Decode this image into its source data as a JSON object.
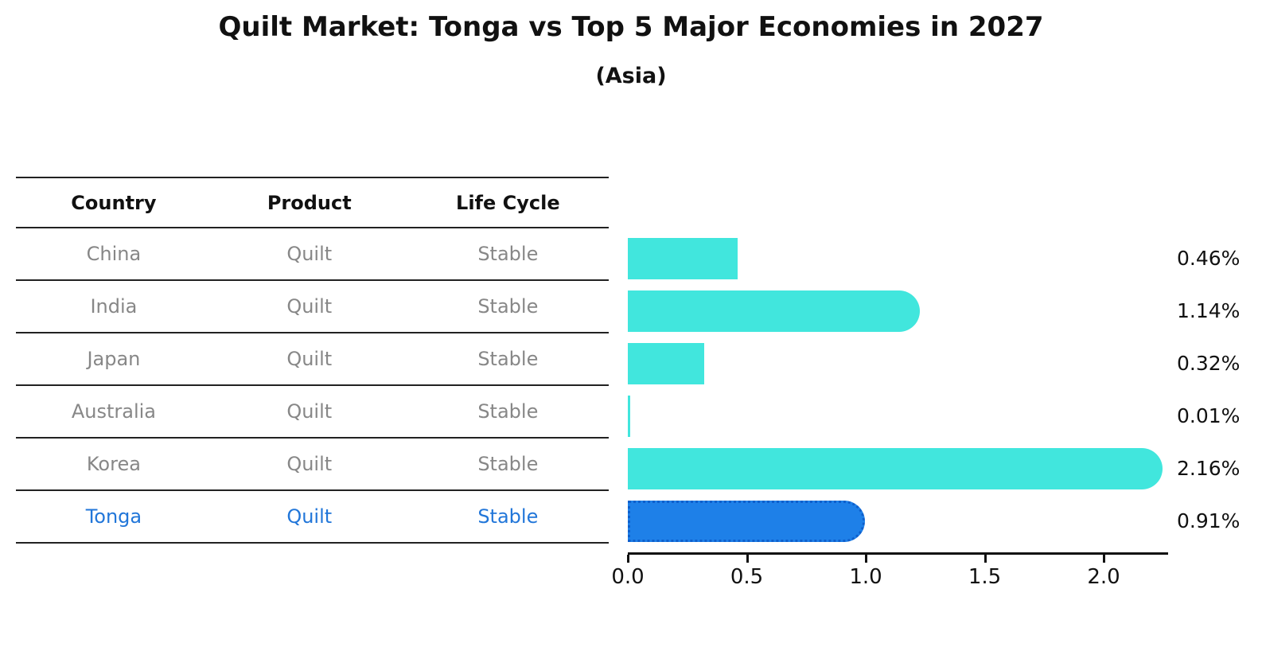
{
  "title": "Quilt Market: Tonga vs Top 5 Major Economies in 2027",
  "subtitle": "(Asia)",
  "table": {
    "headers": [
      "Country",
      "Product",
      "Life Cycle"
    ],
    "rows": [
      {
        "country": "China",
        "product": "Quilt",
        "life_cycle": "Stable"
      },
      {
        "country": "India",
        "product": "Quilt",
        "life_cycle": "Stable"
      },
      {
        "country": "Japan",
        "product": "Quilt",
        "life_cycle": "Stable"
      },
      {
        "country": "Australia",
        "product": "Quilt",
        "life_cycle": "Stable"
      },
      {
        "country": "Korea",
        "product": "Quilt",
        "life_cycle": "Stable"
      },
      {
        "country": "Tonga",
        "product": "Quilt",
        "life_cycle": "Stable"
      }
    ],
    "highlight_row": 5,
    "highlight_text_color": "#2176d9"
  },
  "chart_data": {
    "type": "bar",
    "orientation": "horizontal",
    "title": "Quilt Market: Tonga vs Top 5 Major Economies in 2027",
    "subtitle": "(Asia)",
    "categories": [
      "China",
      "India",
      "Japan",
      "Australia",
      "Korea",
      "Tonga"
    ],
    "values": [
      0.46,
      1.14,
      0.32,
      0.01,
      2.16,
      0.91
    ],
    "labels": [
      "0.46%",
      "1.14%",
      "0.32%",
      "0.01%",
      "2.16%",
      "0.91%"
    ],
    "rounded_end": [
      false,
      true,
      false,
      false,
      true,
      true
    ],
    "highlight_index": 5,
    "bar_color": "#41e6dd",
    "highlight_bar_color": "#1e80e8",
    "highlight_border_color": "#0e5fcc",
    "xtick_values": [
      0.0,
      0.5,
      1.0,
      1.5,
      2.0
    ],
    "xtick_labels": [
      "0.0",
      "0.5",
      "1.0",
      "1.5",
      "2.0"
    ],
    "xlim": [
      0,
      2.27
    ],
    "grid": false,
    "legend": "none"
  }
}
